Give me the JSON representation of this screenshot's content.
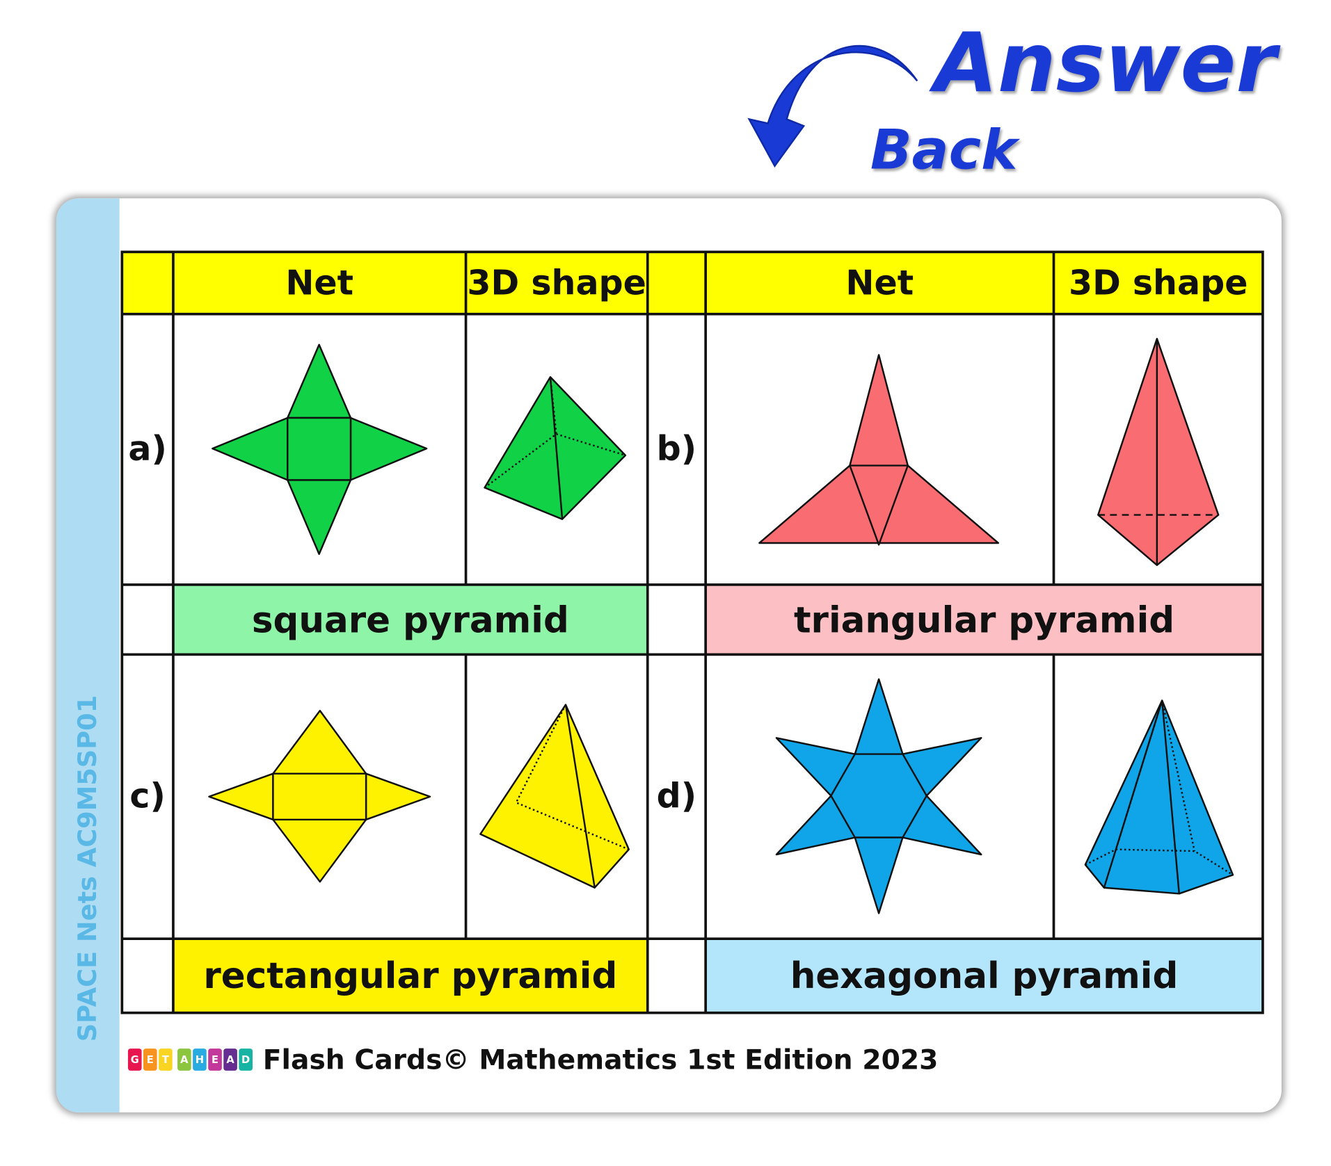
{
  "header": {
    "answer": "Answer",
    "back": "Back",
    "arrow_icon": "curved-arrow-back-icon"
  },
  "card": {
    "side_label": "SPACE Nets AC9M5SP01",
    "columns": {
      "net": "Net",
      "shape": "3D shape"
    },
    "items": [
      {
        "letter": "a)",
        "name": "square pyramid",
        "color": "#11d147",
        "label_bg": "#8ef5a8"
      },
      {
        "letter": "b)",
        "name": "triangular pyramid",
        "color": "#f86c72",
        "label_bg": "#fcc0c4"
      },
      {
        "letter": "c)",
        "name": "rectangular pyramid",
        "color": "#fff200",
        "label_bg": "#fff200"
      },
      {
        "letter": "d)",
        "name": "hexagonal pyramid",
        "color": "#10a5e8",
        "label_bg": "#b3e5fb"
      }
    ],
    "header_color": "#ffff00"
  },
  "footer": {
    "logo_letters": [
      "G",
      "E",
      "T",
      "A",
      "H",
      "E",
      "A",
      "D"
    ],
    "text": "Flash Cards© Mathematics 1st Edition 2023"
  }
}
